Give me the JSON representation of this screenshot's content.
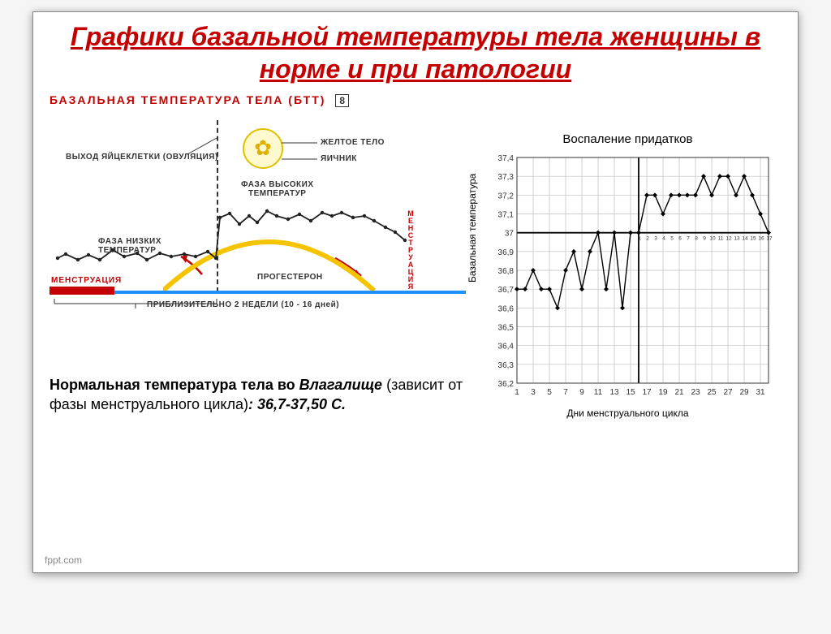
{
  "title": "Графики базальной температуры тела женщины  в норме и при патологии",
  "left_panel": {
    "header": "БАЗАЛЬНАЯ ТЕМПЕРАТУРА ТЕЛА (БТТ)",
    "box_num": "8",
    "labels": {
      "ovulation": "ВЫХОД ЯЙЦЕКЛЕТКИ (ОВУЛЯЦИЯ)",
      "corpus_luteum": "ЖЕЛТОЕ ТЕЛО",
      "ovary": "ЯИЧНИК",
      "high_phase": "ФАЗА ВЫСОКИХ\nТЕМПЕРАТУР",
      "low_phase": "ФАЗА НИЗКИХ\nТЕМПЕРАТУР",
      "progesterone": "ПРОГЕСТЕРОН",
      "menstruation_left": "МЕНСТРУАЦИЯ",
      "menstruation_right": "МЕНСТРУАЦИЯ",
      "duration": "ПРИБЛИЗИТЕЛЬНО 2 НЕДЕЛИ (10 - 16 дней)"
    },
    "temp_series": {
      "color": "#222222",
      "points": [
        [
          10,
          180
        ],
        [
          20,
          175
        ],
        [
          35,
          182
        ],
        [
          48,
          176
        ],
        [
          62,
          182
        ],
        [
          78,
          170
        ],
        [
          92,
          178
        ],
        [
          108,
          174
        ],
        [
          120,
          182
        ],
        [
          136,
          174
        ],
        [
          150,
          178
        ],
        [
          166,
          175
        ],
        [
          180,
          178
        ],
        [
          195,
          172
        ],
        [
          205,
          180
        ],
        [
          210,
          130
        ],
        [
          222,
          125
        ],
        [
          234,
          138
        ],
        [
          246,
          128
        ],
        [
          256,
          136
        ],
        [
          268,
          122
        ],
        [
          280,
          128
        ],
        [
          294,
          132
        ],
        [
          308,
          126
        ],
        [
          322,
          134
        ],
        [
          336,
          124
        ],
        [
          348,
          128
        ],
        [
          360,
          124
        ],
        [
          374,
          130
        ],
        [
          388,
          128
        ],
        [
          400,
          134
        ],
        [
          414,
          142
        ],
        [
          426,
          148
        ],
        [
          438,
          158
        ]
      ]
    },
    "arc": {
      "color": "#f5c400",
      "baseline_color": "#1e90ff",
      "mens_color": "#c40000"
    }
  },
  "body_text": {
    "prefix_bold": "Нормальная температура тела во ",
    "prefix_italic": "Влагалище",
    "middle": " (зависит от фазы менструального цикла)",
    "range_bold_italic": ": 36,7-37,50 С."
  },
  "right_chart": {
    "title": "Воспаление придатков",
    "ylabel": "Базальная температура",
    "xlabel": "Дни менструального цикла",
    "y_ticks": [
      "37,4",
      "37,3",
      "37,2",
      "37,1",
      "37",
      "36,9",
      "36,8",
      "36,7",
      "36,6",
      "36,5",
      "36,4",
      "36,3",
      "36,2"
    ],
    "y_values": [
      37.4,
      37.3,
      37.2,
      37.1,
      37.0,
      36.9,
      36.8,
      36.7,
      36.6,
      36.5,
      36.4,
      36.3,
      36.2
    ],
    "x_ticks": [
      1,
      3,
      5,
      7,
      9,
      11,
      13,
      15,
      17,
      19,
      21,
      23,
      25,
      27,
      29,
      31
    ],
    "inner_ticks": [
      1,
      2,
      3,
      4,
      5,
      6,
      7,
      8,
      9,
      10,
      11,
      12,
      13,
      14,
      15,
      16,
      17
    ],
    "line_color": "#000000",
    "grid_color": "#bfbfbf",
    "heavy_line_color": "#000000",
    "data": [
      [
        1,
        36.7
      ],
      [
        2,
        36.7
      ],
      [
        3,
        36.8
      ],
      [
        4,
        36.7
      ],
      [
        5,
        36.7
      ],
      [
        6,
        36.6
      ],
      [
        7,
        36.8
      ],
      [
        8,
        36.9
      ],
      [
        9,
        36.7
      ],
      [
        10,
        36.9
      ],
      [
        11,
        37.0
      ],
      [
        12,
        36.7
      ],
      [
        13,
        37.0
      ],
      [
        14,
        36.6
      ],
      [
        15,
        37.0
      ],
      [
        16,
        37.0
      ],
      [
        17,
        37.2
      ],
      [
        18,
        37.2
      ],
      [
        19,
        37.1
      ],
      [
        20,
        37.2
      ],
      [
        21,
        37.2
      ],
      [
        22,
        37.2
      ],
      [
        23,
        37.2
      ],
      [
        24,
        37.3
      ],
      [
        25,
        37.2
      ],
      [
        26,
        37.3
      ],
      [
        27,
        37.3
      ],
      [
        28,
        37.2
      ],
      [
        29,
        37.3
      ],
      [
        30,
        37.2
      ],
      [
        31,
        37.1
      ],
      [
        32,
        37.0
      ]
    ],
    "ylim": [
      36.2,
      37.4
    ],
    "xlim": [
      1,
      32
    ]
  },
  "source": "fppt.com"
}
